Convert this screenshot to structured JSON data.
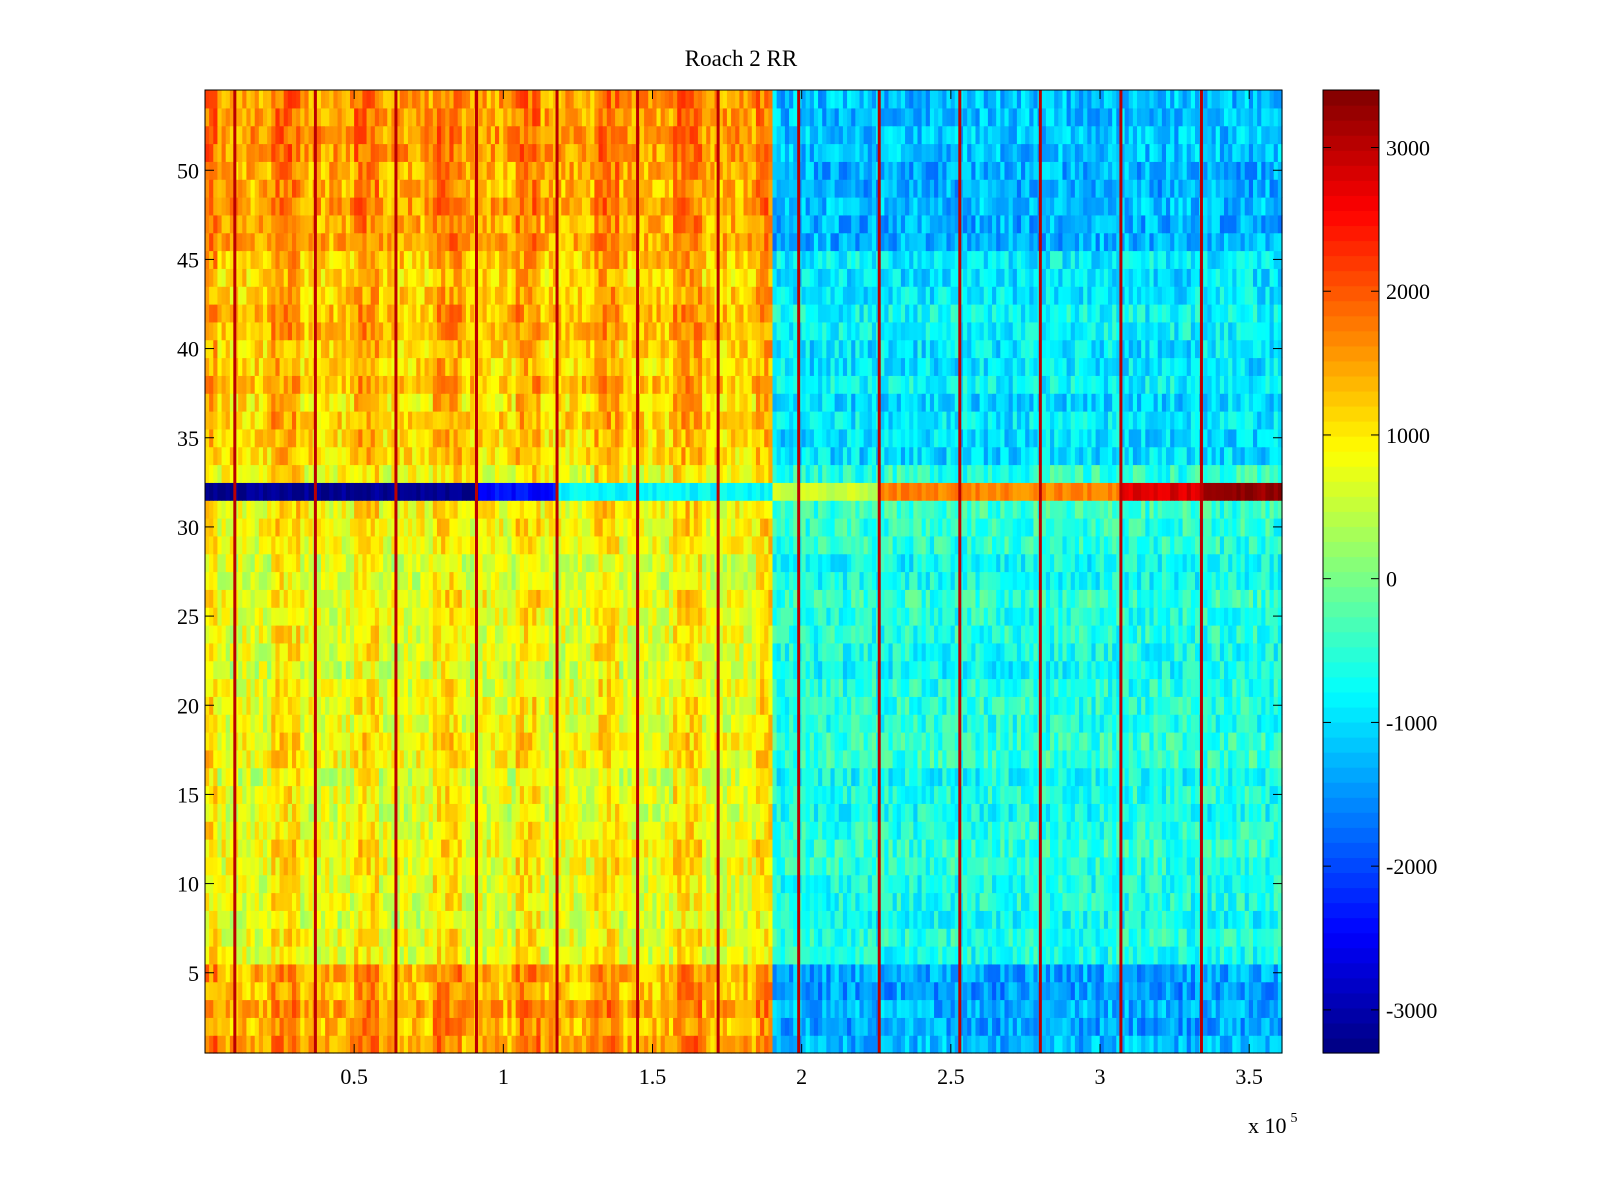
{
  "chart_data": {
    "type": "heatmap",
    "title": "Roach 2 RR",
    "xlabel": "",
    "ylabel": "",
    "xlim": [
      0,
      361000
    ],
    "ylim": [
      0.5,
      54.5
    ],
    "x_ticks": [
      50000,
      100000,
      150000,
      200000,
      250000,
      300000,
      350000
    ],
    "x_tick_labels": [
      "0.5",
      "1",
      "1.5",
      "2",
      "2.5",
      "3",
      "3.5"
    ],
    "x_exponent_label": "x 10",
    "x_exponent_power": "5",
    "y_ticks": [
      5,
      10,
      15,
      20,
      25,
      30,
      35,
      40,
      45,
      50
    ],
    "y_tick_labels": [
      "5",
      "10",
      "15",
      "20",
      "25",
      "30",
      "35",
      "40",
      "45",
      "50"
    ],
    "rows": 54,
    "colormap": "jet",
    "colorbar": {
      "clim": [
        -3300,
        3400
      ],
      "ticks": [
        -3000,
        -2000,
        -1000,
        0,
        1000,
        2000,
        3000
      ],
      "tick_labels": [
        "-3000",
        "-2000",
        "-1000",
        "0",
        "1000",
        "2000",
        "3000"
      ]
    },
    "regions": [
      {
        "x_range": [
          0,
          190000
        ],
        "typical_value": 700,
        "note": "yellow/orange, warm (>1500) near rows 1-5 and 34-54"
      },
      {
        "x_range": [
          190000,
          361000
        ],
        "typical_value": -600,
        "note": "cyan/blue, cooler (-1500) near rows 1-5 and 46-53"
      }
    ],
    "vertical_spikes": {
      "x": [
        10000,
        37000,
        64000,
        91000,
        118000,
        145000,
        172000,
        199000,
        226000,
        253000,
        280000,
        307000,
        334000
      ],
      "value": 3000
    },
    "anomalous_row": {
      "row": 32,
      "segments": [
        {
          "x_range": [
            0,
            92000
          ],
          "value": -3200
        },
        {
          "x_range": [
            92000,
            118000
          ],
          "value": -2400
        },
        {
          "x_range": [
            118000,
            190000
          ],
          "value": -800
        },
        {
          "x_range": [
            190000,
            227000
          ],
          "value": 500
        },
        {
          "x_range": [
            227000,
            307000
          ],
          "value": 1700
        },
        {
          "x_range": [
            307000,
            334000
          ],
          "value": 2800
        },
        {
          "x_range": [
            334000,
            361000
          ],
          "value": 3300
        }
      ]
    }
  }
}
